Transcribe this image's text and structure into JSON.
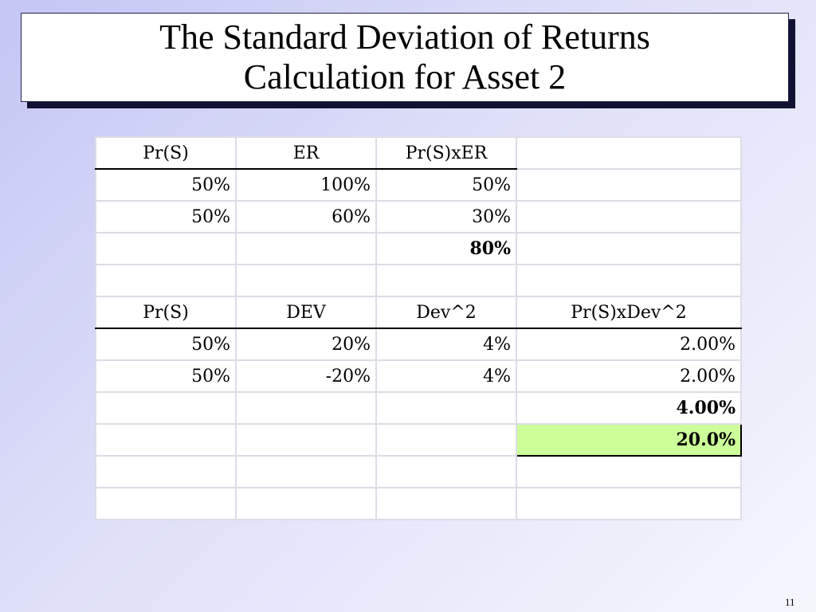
{
  "title": {
    "line1": "The Standard Deviation of Returns",
    "line2": "Calculation for Asset 2"
  },
  "table": {
    "rows": [
      [
        "Pr(S)",
        "ER",
        "Pr(S)xER",
        ""
      ],
      [
        "50%",
        "100%",
        "50%",
        ""
      ],
      [
        "50%",
        "60%",
        "30%",
        ""
      ],
      [
        "",
        "",
        "80%",
        ""
      ],
      [
        "",
        "",
        "",
        ""
      ],
      [
        "Pr(S)",
        "DEV",
        "Dev^2",
        "Pr(S)xDev^2"
      ],
      [
        "50%",
        "20%",
        "4%",
        "2.00%"
      ],
      [
        "50%",
        "-20%",
        "4%",
        "2.00%"
      ],
      [
        "",
        "",
        "",
        "4.00%"
      ],
      [
        "",
        "",
        "",
        "20.0%"
      ],
      [
        "",
        "",
        "",
        ""
      ],
      [
        "",
        "",
        "",
        ""
      ]
    ]
  },
  "highlight_color": "#ccff99",
  "slide_number": "11"
}
